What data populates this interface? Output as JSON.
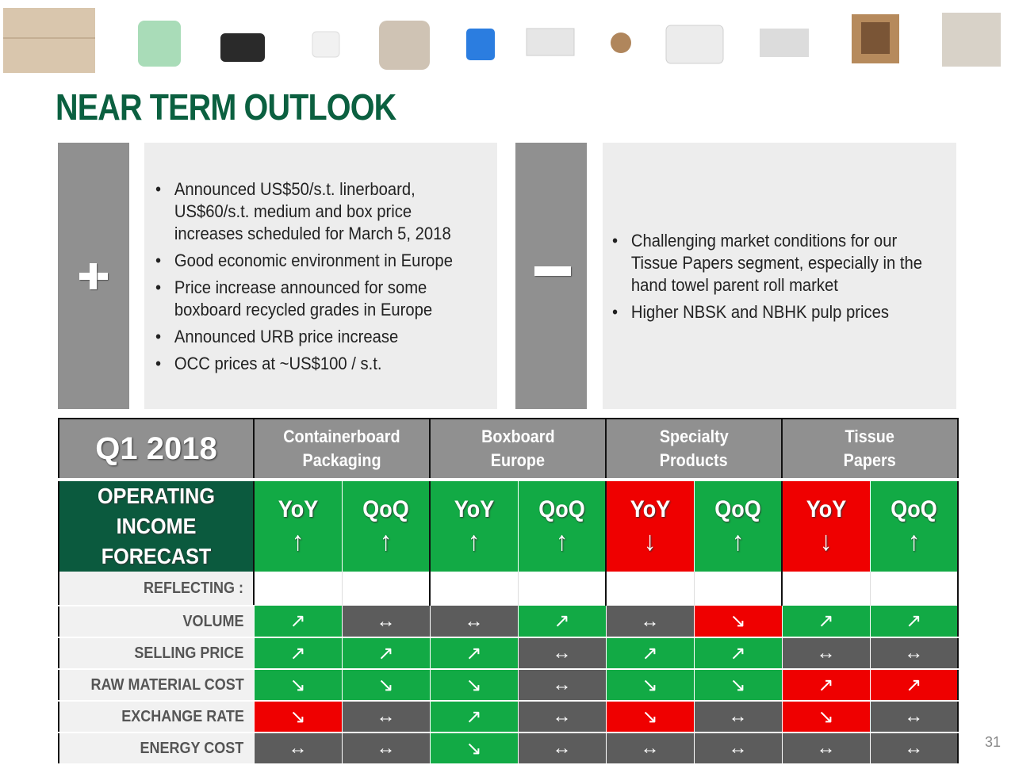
{
  "title": "NEAR TERM OUTLOOK",
  "positive": {
    "sign_icon": "plus-icon",
    "bullets": [
      "Announced US$50/s.t. linerboard, US$60/s.t. medium and box price increases scheduled for March 5, 2018",
      "Good economic environment in Europe",
      "Price increase announced for some boxboard recycled grades in Europe",
      "Announced URB price increase",
      "OCC prices at ~US$100 / s.t."
    ]
  },
  "negative": {
    "sign_icon": "minus-icon",
    "bullets": [
      "Challenging market conditions for our Tissue Papers segment, especially in the hand towel parent roll market",
      "Higher NBSK and NBHK pulp prices"
    ]
  },
  "bullet_char": "•",
  "table": {
    "period": "Q1 2018",
    "segments": [
      {
        "line1": "Containerboard",
        "line2": "Packaging"
      },
      {
        "line1": "Boxboard",
        "line2": "Europe"
      },
      {
        "line1": "Specialty",
        "line2": "Products"
      },
      {
        "line1": "Tissue",
        "line2": "Papers"
      }
    ],
    "forecast_label_line1": "OPERATING INCOME",
    "forecast_label_line2": "FORECAST",
    "forecast": [
      {
        "label": "YoY",
        "arrow": "↑",
        "color": "green"
      },
      {
        "label": "QoQ",
        "arrow": "↑",
        "color": "green"
      },
      {
        "label": "YoY",
        "arrow": "↑",
        "color": "green"
      },
      {
        "label": "QoQ",
        "arrow": "↑",
        "color": "green"
      },
      {
        "label": "YoY",
        "arrow": "↓",
        "color": "red"
      },
      {
        "label": "QoQ",
        "arrow": "↑",
        "color": "green"
      },
      {
        "label": "YoY",
        "arrow": "↓",
        "color": "red"
      },
      {
        "label": "QoQ",
        "arrow": "↑",
        "color": "green"
      }
    ],
    "reflecting_label": "REFLECTING :",
    "rows": [
      {
        "label": "VOLUME",
        "cells": [
          {
            "a": "↗",
            "c": "green"
          },
          {
            "a": "↔",
            "c": "gray"
          },
          {
            "a": "↔",
            "c": "gray"
          },
          {
            "a": "↗",
            "c": "green"
          },
          {
            "a": "↔",
            "c": "gray"
          },
          {
            "a": "↘",
            "c": "red"
          },
          {
            "a": "↗",
            "c": "green"
          },
          {
            "a": "↗",
            "c": "green"
          }
        ]
      },
      {
        "label": "SELLING PRICE",
        "cells": [
          {
            "a": "↗",
            "c": "green"
          },
          {
            "a": "↗",
            "c": "green"
          },
          {
            "a": "↗",
            "c": "green"
          },
          {
            "a": "↔",
            "c": "gray"
          },
          {
            "a": "↗",
            "c": "green"
          },
          {
            "a": "↗",
            "c": "green"
          },
          {
            "a": "↔",
            "c": "gray"
          },
          {
            "a": "↔",
            "c": "gray"
          }
        ]
      },
      {
        "label": "RAW MATERIAL COST",
        "cells": [
          {
            "a": "↘",
            "c": "green"
          },
          {
            "a": "↘",
            "c": "green"
          },
          {
            "a": "↘",
            "c": "green"
          },
          {
            "a": "↔",
            "c": "gray"
          },
          {
            "a": "↘",
            "c": "green"
          },
          {
            "a": "↘",
            "c": "green"
          },
          {
            "a": "↗",
            "c": "red"
          },
          {
            "a": "↗",
            "c": "red"
          }
        ]
      },
      {
        "label": "EXCHANGE RATE",
        "cells": [
          {
            "a": "↘",
            "c": "red"
          },
          {
            "a": "↔",
            "c": "gray"
          },
          {
            "a": "↗",
            "c": "green"
          },
          {
            "a": "↔",
            "c": "gray"
          },
          {
            "a": "↘",
            "c": "red"
          },
          {
            "a": "↔",
            "c": "gray"
          },
          {
            "a": "↘",
            "c": "red"
          },
          {
            "a": "↔",
            "c": "gray"
          }
        ]
      },
      {
        "label": "ENERGY COST",
        "cells": [
          {
            "a": "↔",
            "c": "gray"
          },
          {
            "a": "↔",
            "c": "gray"
          },
          {
            "a": "↘",
            "c": "green"
          },
          {
            "a": "↔",
            "c": "gray"
          },
          {
            "a": "↔",
            "c": "gray"
          },
          {
            "a": "↔",
            "c": "gray"
          },
          {
            "a": "↔",
            "c": "gray"
          },
          {
            "a": "↔",
            "c": "gray"
          }
        ]
      }
    ]
  },
  "colors": {
    "brand_green": "#0b6040",
    "positive": "#12aa45",
    "negative": "#ef0000",
    "neutral": "#5c5c5c"
  },
  "page_number": "31"
}
